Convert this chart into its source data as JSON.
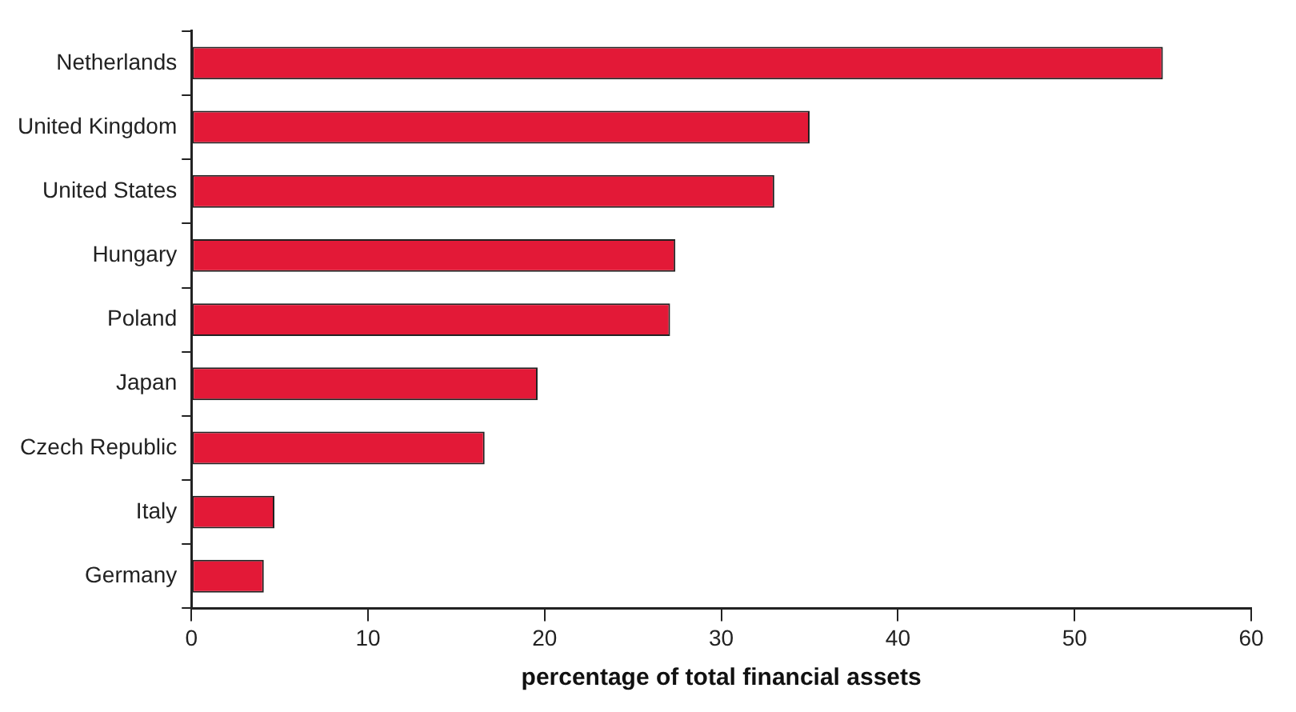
{
  "chart_data": {
    "type": "bar",
    "orientation": "horizontal",
    "xlabel": "percentage of total financial assets",
    "categories": [
      "Netherlands",
      "United Kingdom",
      "United States",
      "Hungary",
      "Poland",
      "Japan",
      "Czech Republic",
      "Italy",
      "Germany"
    ],
    "values": [
      55,
      35,
      33,
      27.4,
      27.1,
      19.6,
      16.6,
      4.7,
      4.1
    ],
    "color": "#e31937",
    "xlim": [
      0,
      60
    ],
    "xticks": [
      0,
      10,
      20,
      30,
      40,
      50,
      60
    ],
    "grid": false,
    "legend": false
  }
}
